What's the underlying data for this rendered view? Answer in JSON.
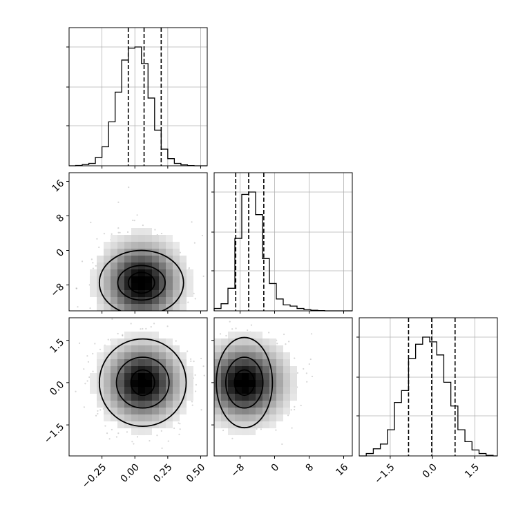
{
  "chart_data": {
    "type": "corner",
    "title": "",
    "parameters": [
      {
        "name": "",
        "range": [
          -0.5,
          0.55
        ],
        "ticks": [
          -0.25,
          0.0,
          0.25,
          0.5
        ],
        "tick_labels": [
          "−0.25",
          "0.00",
          "0.25",
          "0.50"
        ],
        "quantiles": [
          -0.05,
          0.07,
          0.2
        ],
        "grid": true,
        "hist_bins": [
          -0.5,
          -0.45,
          -0.4,
          -0.35,
          -0.3,
          -0.25,
          -0.2,
          -0.15,
          -0.1,
          -0.05,
          0.0,
          0.05,
          0.1,
          0.15,
          0.2,
          0.25,
          0.3,
          0.35,
          0.4,
          0.45,
          0.5,
          0.55
        ],
        "hist_counts": [
          0.0,
          0.003,
          0.01,
          0.02,
          0.07,
          0.16,
          0.37,
          0.62,
          0.89,
          0.99,
          1.0,
          0.86,
          0.57,
          0.3,
          0.14,
          0.06,
          0.02,
          0.008,
          0.002,
          0.0,
          0.0
        ]
      },
      {
        "name": "",
        "range": [
          -14,
          18
        ],
        "ticks": [
          -8,
          0,
          8,
          16
        ],
        "tick_labels": [
          "−8",
          "0",
          "8",
          "16"
        ],
        "quantiles": [
          -9,
          -6,
          -2.5
        ],
        "grid": true,
        "hist_bins": [
          -14,
          -12.4,
          -10.8,
          -9.2,
          -7.6,
          -6,
          -4.4,
          -2.8,
          -1.2,
          0.4,
          2,
          3.6,
          5.2,
          6.8,
          8.4,
          10,
          11.6,
          13.2,
          14.8,
          16.4,
          18
        ],
        "hist_counts": [
          0.02,
          0.06,
          0.19,
          0.61,
          0.98,
          1.0,
          0.81,
          0.44,
          0.23,
          0.1,
          0.05,
          0.04,
          0.02,
          0.01,
          0.005,
          0.002,
          0.0,
          0.0,
          0.0,
          0.0
        ]
      },
      {
        "name": "",
        "range": [
          -2.6,
          2.3
        ],
        "ticks": [
          -1.5,
          0.0,
          1.5
        ],
        "tick_labels": [
          "−1.5",
          "0.0",
          "1.5"
        ],
        "quantiles": [
          -0.85,
          -0.03,
          0.8
        ],
        "grid": true,
        "hist_bins": [
          -2.6,
          -2.35,
          -2.1,
          -1.85,
          -1.6,
          -1.35,
          -1.1,
          -0.85,
          -0.6,
          -0.35,
          -0.1,
          0.15,
          0.4,
          0.65,
          0.9,
          1.15,
          1.4,
          1.65,
          1.9,
          2.15,
          2.3
        ],
        "hist_counts": [
          0.0,
          0.02,
          0.06,
          0.1,
          0.22,
          0.45,
          0.55,
          0.82,
          0.94,
          1.0,
          0.96,
          0.85,
          0.62,
          0.42,
          0.22,
          0.12,
          0.05,
          0.02,
          0.005,
          0.0
        ]
      }
    ],
    "joint": [
      {
        "x_param": 0,
        "y_param": 1,
        "center": [
          0.05,
          -7.5
        ],
        "contour_levels": [
          {
            "rx": 0.32,
            "ry": 7.5
          },
          {
            "rx": 0.18,
            "ry": 4.0
          },
          {
            "rx": 0.1,
            "ry": 2.4
          }
        ],
        "scatter_sd": [
          0.17,
          5.5
        ]
      },
      {
        "x_param": 0,
        "y_param": 2,
        "center": [
          0.06,
          0.0
        ],
        "contour_levels": [
          {
            "rx": 0.33,
            "ry": 1.55
          },
          {
            "rx": 0.2,
            "ry": 0.9
          },
          {
            "rx": 0.09,
            "ry": 0.45
          },
          {
            "rx": 0.03,
            "ry": 0.14
          }
        ],
        "scatter_sd": [
          0.17,
          0.8
        ]
      },
      {
        "x_param": 1,
        "y_param": 2,
        "center": [
          -7.0,
          0.0
        ],
        "contour_levels": [
          {
            "rx": 6.5,
            "ry": 1.6
          },
          {
            "rx": 4.3,
            "ry": 0.9
          },
          {
            "rx": 2.3,
            "ry": 0.45
          }
        ],
        "scatter_sd": [
          5.5,
          0.8
        ]
      }
    ]
  }
}
